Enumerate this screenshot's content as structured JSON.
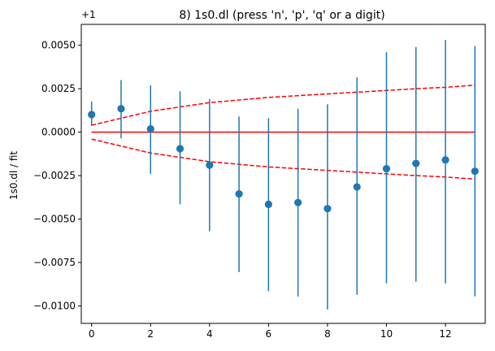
{
  "chart_data": {
    "type": "scatter",
    "title": "8) 1s0.dl   (press 'n', 'p', 'q' or a digit)",
    "xlabel": "",
    "ylabel": "1s0.dl / fit",
    "offset_label": "+1",
    "xlim": [
      -0.35,
      13.35
    ],
    "ylim": [
      -0.011,
      0.0062
    ],
    "x_ticks": [
      0,
      2,
      4,
      6,
      8,
      10,
      12
    ],
    "x_tick_labels": [
      "0",
      "2",
      "4",
      "6",
      "8",
      "10",
      "12"
    ],
    "y_ticks": [
      0.005,
      0.0025,
      0.0,
      -0.0025,
      -0.005,
      -0.0075,
      -0.01
    ],
    "y_tick_labels": [
      "0.0050",
      "0.0025",
      "0.0000",
      "−0.0025",
      "−0.0050",
      "−0.0075",
      "−0.0100"
    ],
    "grid": false,
    "colors": {
      "points": "#1f77b4",
      "fit": "#ff0000",
      "axes": "#000000"
    },
    "series": [
      {
        "kind": "errorbar-points",
        "x": [
          0,
          1,
          2,
          3,
          4,
          5,
          6,
          7,
          8,
          9,
          10,
          11,
          12,
          13
        ],
        "y": [
          0.00101,
          0.00135,
          0.00019,
          -0.00095,
          -0.0019,
          -0.00355,
          -0.00415,
          -0.00405,
          -0.0044,
          -0.00315,
          -0.0021,
          -0.0018,
          -0.0016,
          -0.00225
        ],
        "yerr_low": [
          0.00065,
          0.0017,
          0.0026,
          0.0032,
          0.0038,
          0.0045,
          0.005,
          0.0054,
          0.0058,
          0.0062,
          0.0066,
          0.0068,
          0.0071,
          0.0072
        ],
        "yerr_high": [
          0.00075,
          0.00165,
          0.0025,
          0.0033,
          0.0038,
          0.00445,
          0.00495,
          0.0054,
          0.006,
          0.0063,
          0.0067,
          0.0067,
          0.0069,
          0.0072
        ]
      },
      {
        "kind": "solid-line",
        "x": [
          0,
          13
        ],
        "y": [
          0.0,
          0.0
        ]
      },
      {
        "kind": "dashed-band-upper",
        "x": [
          0,
          1,
          2,
          3,
          4,
          5,
          6,
          7,
          8,
          9,
          10,
          11,
          12,
          13
        ],
        "y": [
          0.0004,
          0.0008,
          0.0012,
          0.00145,
          0.0017,
          0.00185,
          0.002,
          0.0021,
          0.0022,
          0.0023,
          0.0024,
          0.0025,
          0.00258,
          0.0027
        ]
      },
      {
        "kind": "dashed-band-lower",
        "x": [
          0,
          1,
          2,
          3,
          4,
          5,
          6,
          7,
          8,
          9,
          10,
          11,
          12,
          13
        ],
        "y": [
          -0.0004,
          -0.0008,
          -0.0012,
          -0.00145,
          -0.0017,
          -0.00185,
          -0.002,
          -0.0021,
          -0.0022,
          -0.0023,
          -0.0024,
          -0.0025,
          -0.00258,
          -0.0027
        ]
      }
    ]
  }
}
